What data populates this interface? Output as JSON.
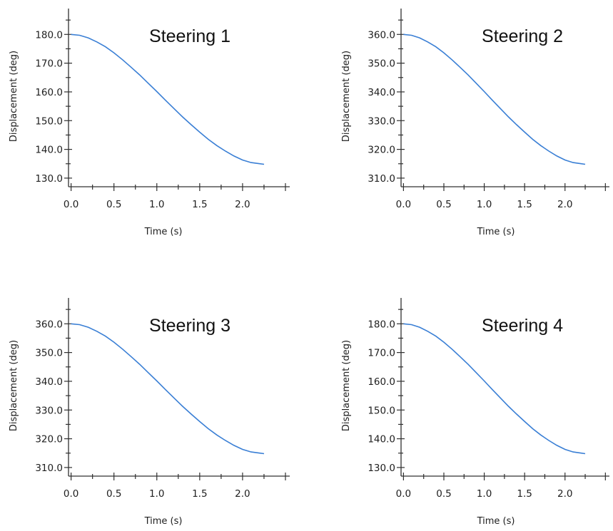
{
  "chart_data": [
    {
      "type": "line",
      "title": "Steering 1",
      "xlabel": "Time (s)",
      "ylabel": "Displacement (deg)",
      "xlim": [
        -0.03,
        2.55
      ],
      "ylim": [
        127,
        189
      ],
      "x_ticks": [
        "0.0",
        "0.5",
        "1.0",
        "1.5",
        "2.0"
      ],
      "y_ticks": [
        "130.0",
        "140.0",
        "150.0",
        "160.0",
        "170.0",
        "180.0"
      ],
      "grid": false,
      "series": [
        {
          "color": "#3a7fd5",
          "x": [
            0,
            0.1,
            0.2,
            0.3,
            0.4,
            0.5,
            0.6,
            0.7,
            0.8,
            0.9,
            1.0,
            1.1,
            1.2,
            1.3,
            1.4,
            1.5,
            1.6,
            1.7,
            1.8,
            1.9,
            2.0,
            2.1,
            2.2,
            2.25
          ],
          "y": [
            180.0,
            179.7,
            178.8,
            177.4,
            175.7,
            173.6,
            171.2,
            168.6,
            165.9,
            163.0,
            160.1,
            157.1,
            154.2,
            151.3,
            148.6,
            146.0,
            143.5,
            141.3,
            139.4,
            137.7,
            136.3,
            135.4,
            135.0,
            134.8
          ]
        }
      ]
    },
    {
      "type": "line",
      "title": "Steering 2",
      "xlabel": "Time (s)",
      "ylabel": "Displacement (deg)",
      "xlim": [
        -0.03,
        2.55
      ],
      "ylim": [
        307,
        369
      ],
      "x_ticks": [
        "0.0",
        "0.5",
        "1.0",
        "1.5",
        "2.0"
      ],
      "y_ticks": [
        "310.0",
        "320.0",
        "330.0",
        "340.0",
        "350.0",
        "360.0"
      ],
      "grid": false,
      "series": [
        {
          "color": "#3a7fd5",
          "x": [
            0,
            0.1,
            0.2,
            0.3,
            0.4,
            0.5,
            0.6,
            0.7,
            0.8,
            0.9,
            1.0,
            1.1,
            1.2,
            1.3,
            1.4,
            1.5,
            1.6,
            1.7,
            1.8,
            1.9,
            2.0,
            2.1,
            2.2,
            2.25
          ],
          "y": [
            360.0,
            359.7,
            358.8,
            357.4,
            355.7,
            353.6,
            351.2,
            348.6,
            345.9,
            343.0,
            340.1,
            337.1,
            334.2,
            331.3,
            328.6,
            326.0,
            323.5,
            321.3,
            319.4,
            317.7,
            316.3,
            315.4,
            315.0,
            314.8
          ]
        }
      ]
    },
    {
      "type": "line",
      "title": "Steering 3",
      "xlabel": "Time (s)",
      "ylabel": "Displacement (deg)",
      "xlim": [
        -0.03,
        2.55
      ],
      "ylim": [
        307,
        369
      ],
      "x_ticks": [
        "0.0",
        "0.5",
        "1.0",
        "1.5",
        "2.0"
      ],
      "y_ticks": [
        "310.0",
        "320.0",
        "330.0",
        "340.0",
        "350.0",
        "360.0"
      ],
      "grid": false,
      "series": [
        {
          "color": "#3a7fd5",
          "x": [
            0,
            0.1,
            0.2,
            0.3,
            0.4,
            0.5,
            0.6,
            0.7,
            0.8,
            0.9,
            1.0,
            1.1,
            1.2,
            1.3,
            1.4,
            1.5,
            1.6,
            1.7,
            1.8,
            1.9,
            2.0,
            2.1,
            2.2,
            2.25
          ],
          "y": [
            360.0,
            359.7,
            358.8,
            357.4,
            355.7,
            353.6,
            351.2,
            348.6,
            345.9,
            343.0,
            340.1,
            337.1,
            334.2,
            331.3,
            328.6,
            326.0,
            323.5,
            321.3,
            319.4,
            317.7,
            316.3,
            315.4,
            315.0,
            314.8
          ]
        }
      ]
    },
    {
      "type": "line",
      "title": "Steering 4",
      "xlabel": "Time (s)",
      "ylabel": "Displacement (deg)",
      "xlim": [
        -0.03,
        2.55
      ],
      "ylim": [
        127,
        189
      ],
      "x_ticks": [
        "0.0",
        "0.5",
        "1.0",
        "1.5",
        "2.0"
      ],
      "y_ticks": [
        "130.0",
        "140.0",
        "150.0",
        "160.0",
        "170.0",
        "180.0"
      ],
      "grid": false,
      "series": [
        {
          "color": "#3a7fd5",
          "x": [
            0,
            0.1,
            0.2,
            0.3,
            0.4,
            0.5,
            0.6,
            0.7,
            0.8,
            0.9,
            1.0,
            1.1,
            1.2,
            1.3,
            1.4,
            1.5,
            1.6,
            1.7,
            1.8,
            1.9,
            2.0,
            2.1,
            2.2,
            2.25
          ],
          "y": [
            180.0,
            179.7,
            178.8,
            177.4,
            175.7,
            173.6,
            171.2,
            168.6,
            165.9,
            163.0,
            160.1,
            157.1,
            154.2,
            151.3,
            148.6,
            146.0,
            143.5,
            141.3,
            139.4,
            137.7,
            136.3,
            135.4,
            135.0,
            134.8
          ]
        }
      ]
    }
  ]
}
